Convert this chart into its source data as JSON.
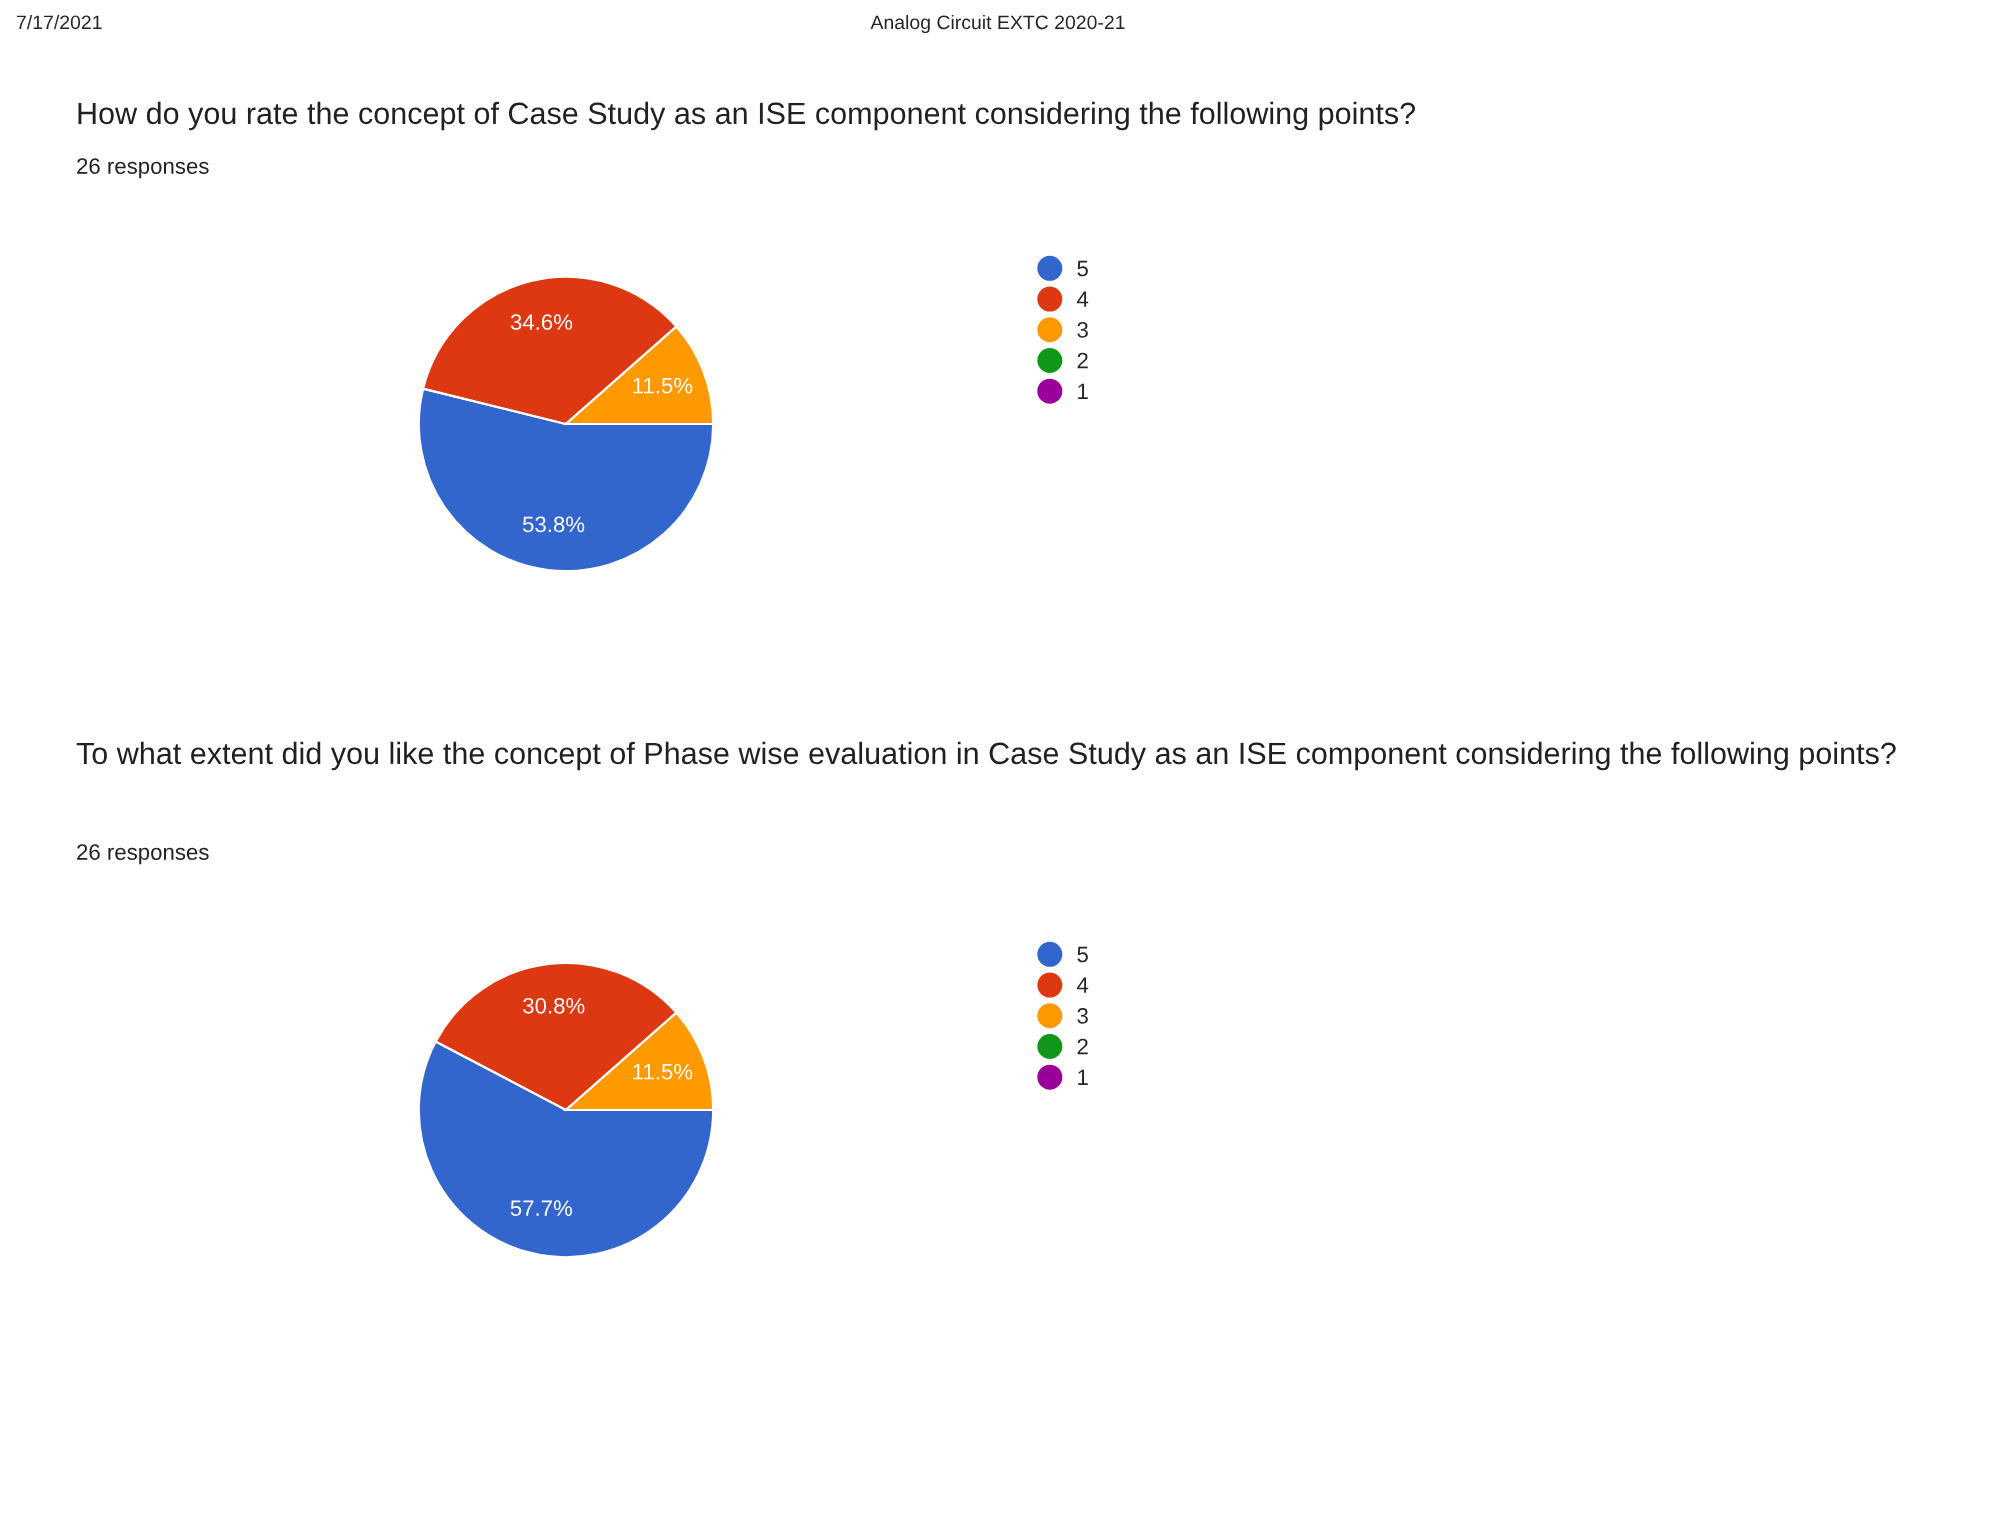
{
  "chart_data": [
    {
      "type": "pie",
      "title": "How do you rate the concept of Case Study as an ISE component considering the following points?",
      "subtitle": "26 responses",
      "annotations": [
        "7/17/2021",
        "Analog Circuit EXTC 2020-21"
      ],
      "categories": [
        "5",
        "4",
        "3",
        "2",
        "1"
      ],
      "values": [
        53.8,
        34.6,
        11.5,
        0,
        0
      ],
      "value_labels": [
        "53.8%",
        "34.6%",
        "11.5%",
        null,
        null
      ],
      "colors": [
        "#3366cc",
        "#dc3912",
        "#ff9900",
        "#109618",
        "#990099"
      ],
      "legend": "right"
    },
    {
      "type": "pie",
      "title": "To what extent did you like the concept of Phase wise evaluation in Case Study as an ISE component considering the following points?",
      "subtitle": "26 responses",
      "categories": [
        "5",
        "4",
        "3",
        "2",
        "1"
      ],
      "values": [
        57.7,
        30.8,
        11.5,
        0,
        0
      ],
      "value_labels": [
        "57.7%",
        "30.8%",
        "11.5%",
        null,
        null
      ],
      "colors": [
        "#3366cc",
        "#dc3912",
        "#ff9900",
        "#109618",
        "#990099"
      ],
      "legend": "right"
    }
  ]
}
